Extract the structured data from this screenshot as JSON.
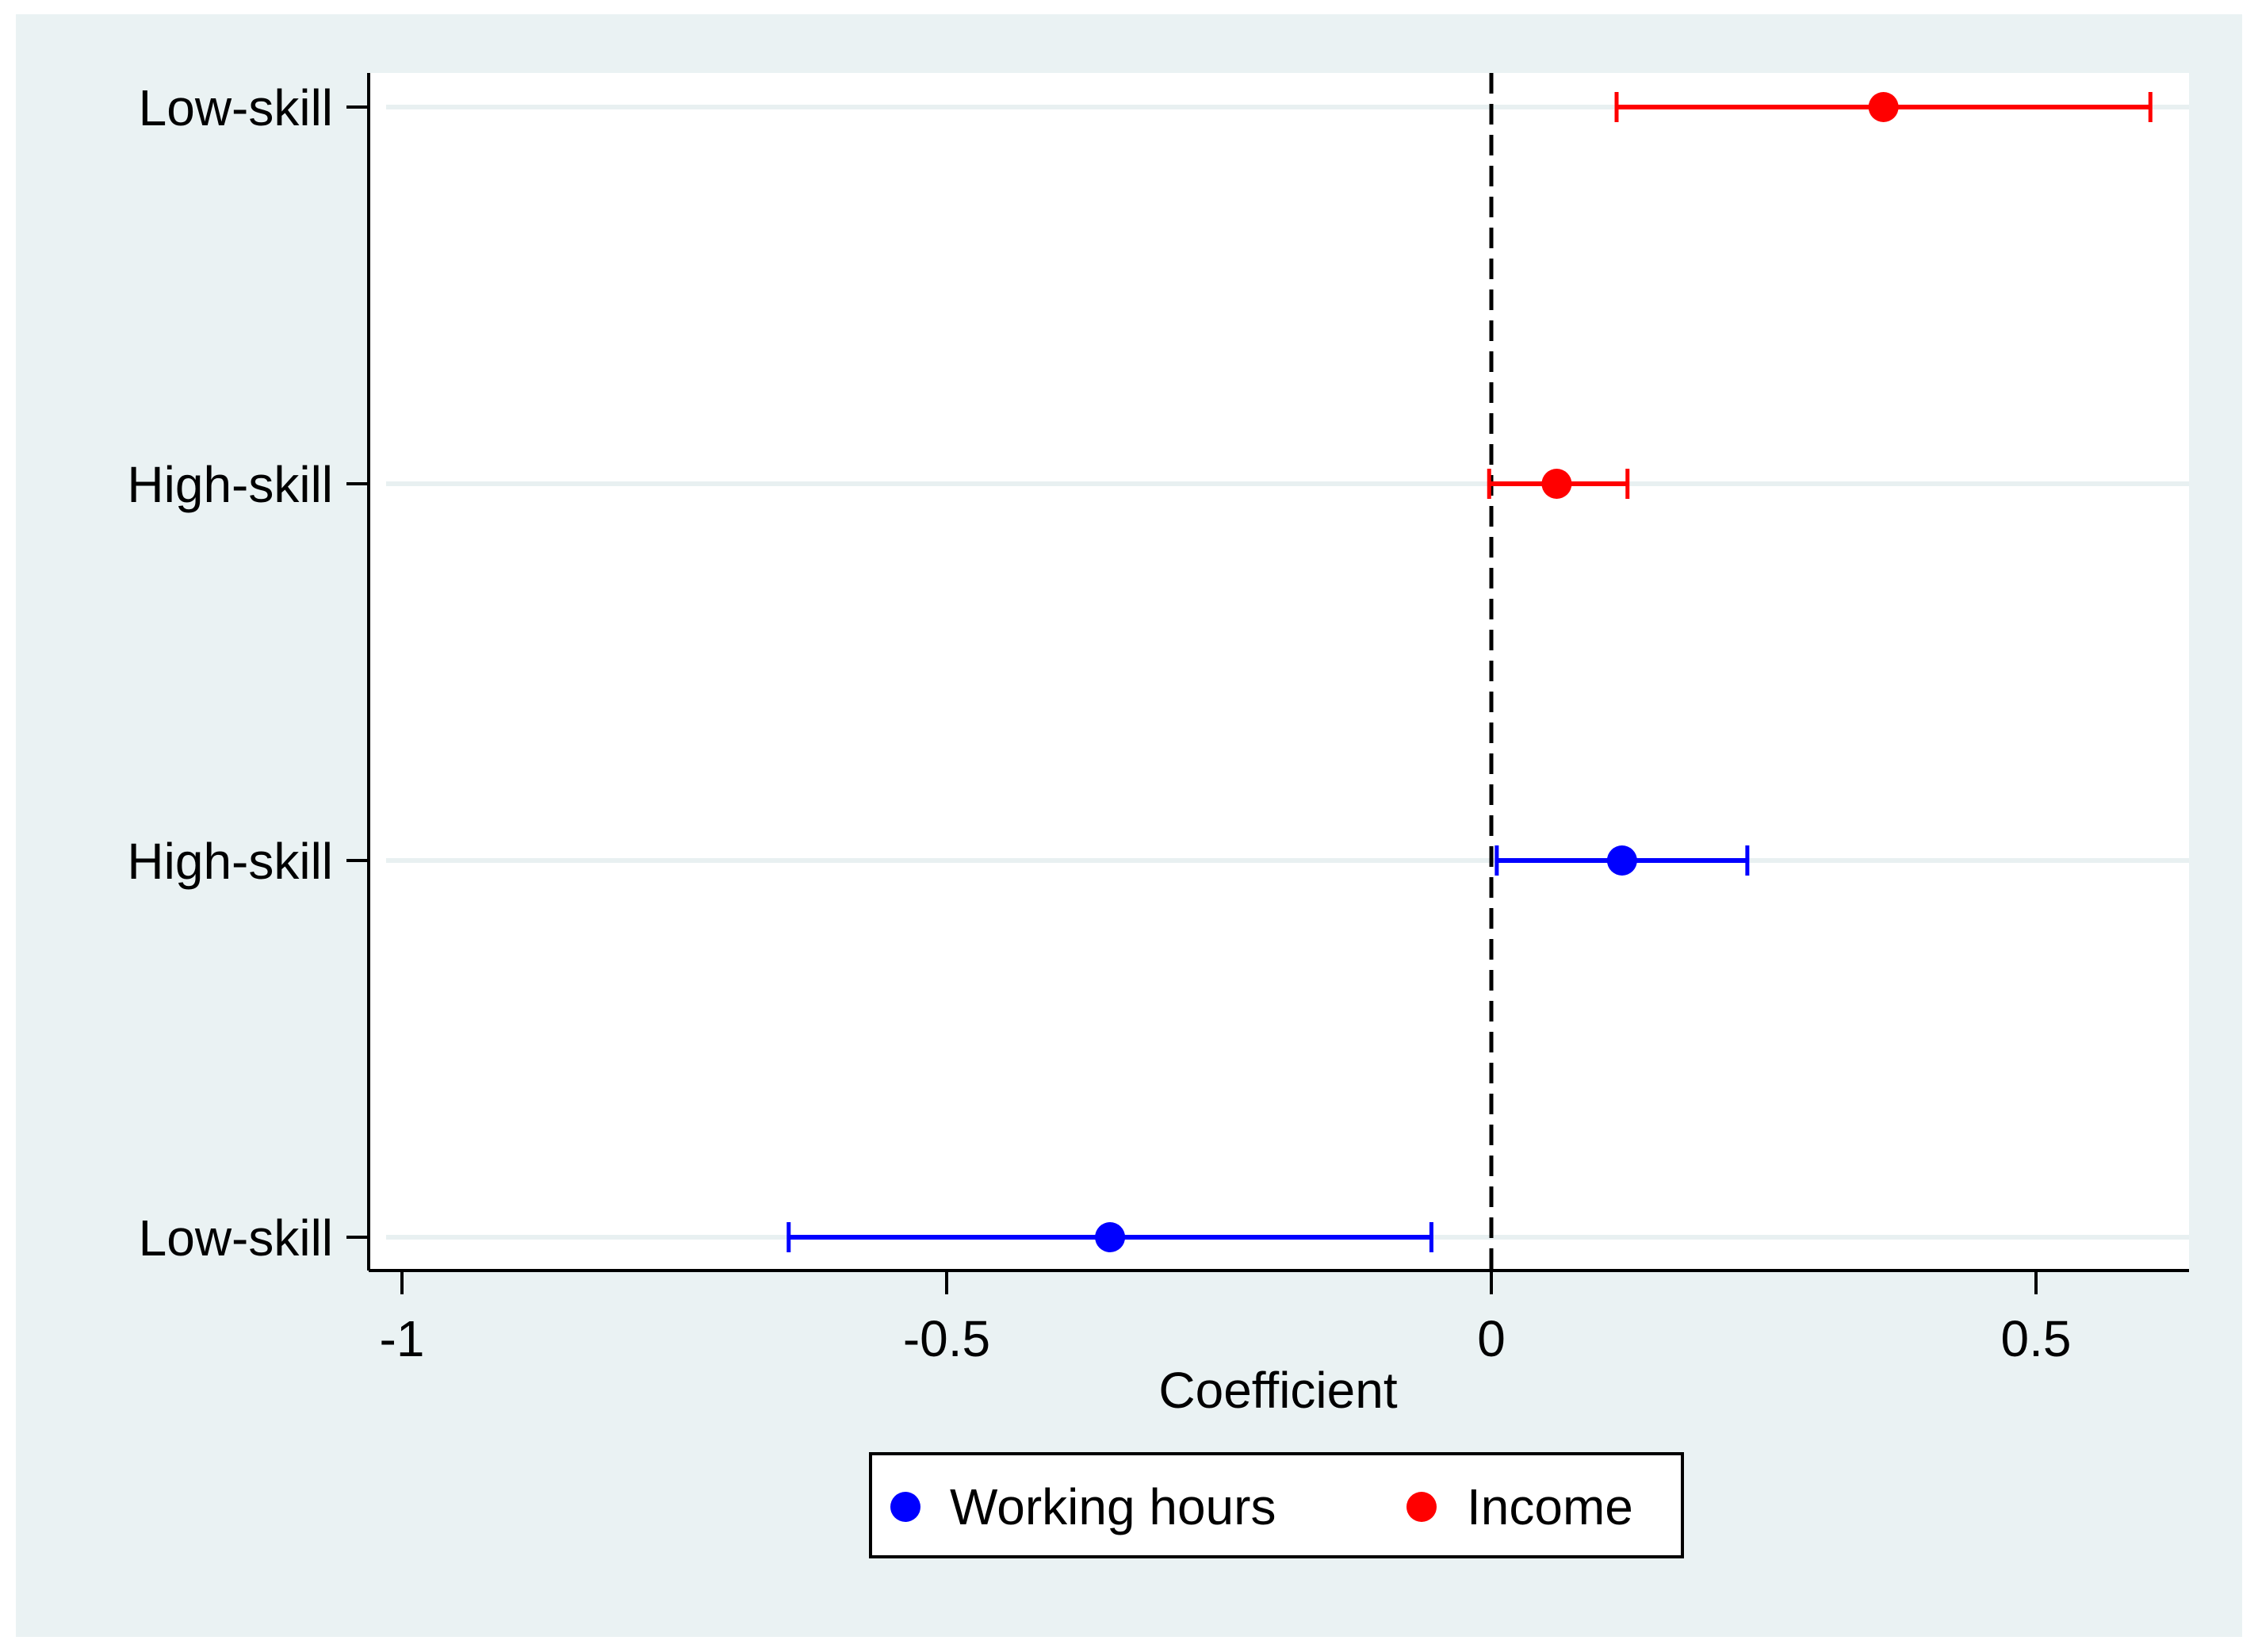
{
  "chart_data": {
    "type": "scatter",
    "subtype": "coefficient-plot",
    "xlabel": "Coefficient",
    "xlim": [
      -1.03,
      0.64
    ],
    "xticks": [
      -1,
      -0.5,
      0,
      0.5
    ],
    "xtick_labels": [
      "-1",
      "-0.5",
      "0",
      "0.5"
    ],
    "reference_line": 0,
    "rows": [
      "Low-skill",
      "High-skill",
      "High-skill",
      "Low-skill"
    ],
    "series": [
      {
        "name": "Working hours",
        "color": "#0000ff",
        "points": [
          {
            "row": 3,
            "label": "Low-skill",
            "estimate": -0.35,
            "ci_low": -0.645,
            "ci_high": -0.055
          },
          {
            "row": 2,
            "label": "High-skill",
            "estimate": 0.12,
            "ci_low": 0.005,
            "ci_high": 0.235
          }
        ]
      },
      {
        "name": "Income",
        "color": "#ff0000",
        "points": [
          {
            "row": 1,
            "label": "High-skill",
            "estimate": 0.06,
            "ci_low": -0.002,
            "ci_high": 0.125
          },
          {
            "row": 0,
            "label": "Low-skill",
            "estimate": 0.36,
            "ci_low": 0.115,
            "ci_high": 0.605
          }
        ]
      }
    ],
    "grid": "horizontal",
    "legend": "bottom"
  }
}
